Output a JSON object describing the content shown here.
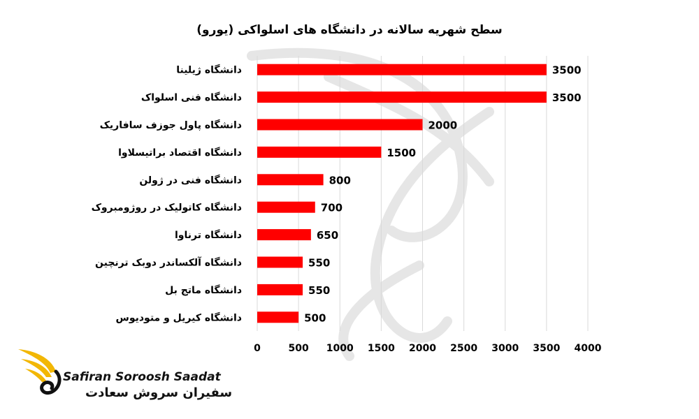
{
  "chart_data": {
    "type": "bar",
    "orientation": "horizontal",
    "title": "سطح شهریه سالانه در دانشگاه های اسلواکی (یورو)",
    "categories": [
      "دانشگاه ژیلینا",
      "دانشگاه فنی اسلواک",
      "دانشگاه پاول جوزف سافاریک",
      "دانشگاه اقتصاد براتیسلاوا",
      "دانشگاه فنی در ژولن",
      "دانشگاه کاتولیک در روژومبروک",
      "دانشگاه ترناوا",
      "دانشگاه آلکساندر دوبک ترنچین",
      "دانشگاه ماتج بل",
      "دانشگاه کیریل و متودیوس"
    ],
    "values": [
      3500,
      3500,
      2000,
      1500,
      800,
      700,
      650,
      550,
      550,
      500
    ],
    "xlim": [
      0,
      4000
    ],
    "xticks": [
      0,
      500,
      1000,
      1500,
      2000,
      2500,
      3000,
      3500,
      4000
    ],
    "grid": "vertical",
    "bar_color": "#ff0000",
    "xlabel": "",
    "ylabel": ""
  },
  "logo": {
    "brand_en": "Safiran Soroosh Saadat",
    "brand_fa": "سفیران سروش سعادت",
    "accent_color": "#f2b705"
  }
}
